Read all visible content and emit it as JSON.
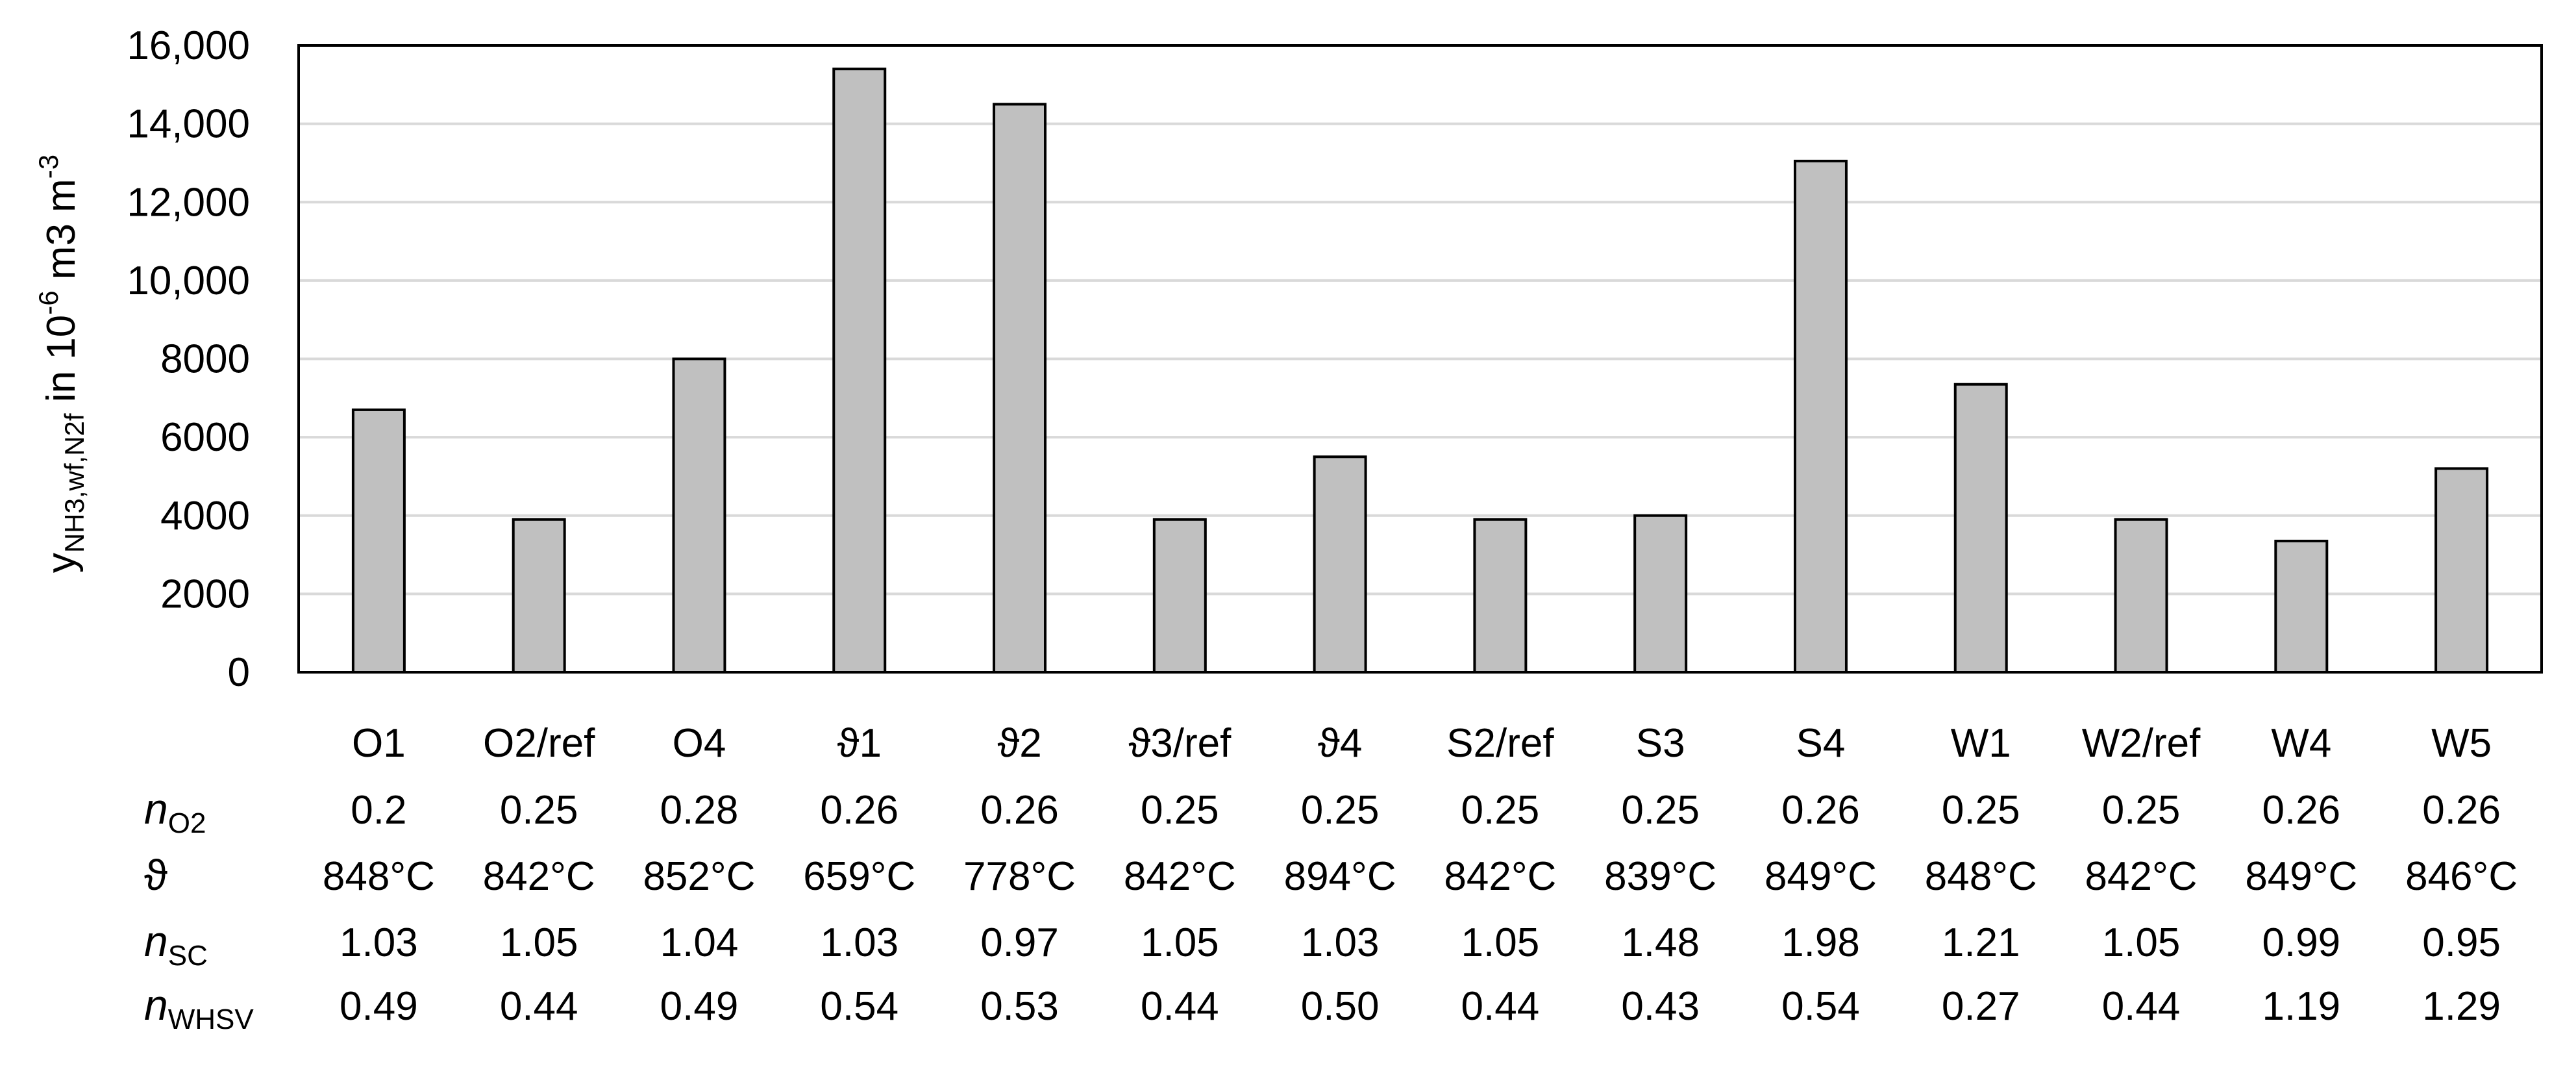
{
  "chart_data": {
    "type": "bar",
    "title": "",
    "xlabel": "",
    "ylabel": {
      "prefix": "y",
      "subscript": "NH3,wf,N2f",
      "mid": " in 10",
      "superscript": "-6",
      "after": " m3 m",
      "superscript2": "-3"
    },
    "ylim": [
      0,
      16000
    ],
    "yticks": [
      0,
      2000,
      4000,
      6000,
      8000,
      10000,
      12000,
      14000,
      16000
    ],
    "ytick_labels": [
      "0",
      "2000",
      "4000",
      "6000",
      "8000",
      "10,000",
      "12,000",
      "14,000",
      "16,000"
    ],
    "grid": true,
    "bar_color": "#c0c0c0",
    "categories": [
      "O1",
      "O2/ref",
      "O4",
      "ϑ1",
      "ϑ2",
      "ϑ3/ref",
      "ϑ4",
      "S2/ref",
      "S3",
      "S4",
      "W1",
      "W2/ref",
      "W4",
      "W5"
    ],
    "values": [
      6700,
      3900,
      8000,
      15400,
      14500,
      3900,
      5500,
      3900,
      4000,
      13050,
      7350,
      3900,
      3350,
      5200
    ],
    "table_rows": [
      {
        "label": {
          "main": "n",
          "sub": "O2"
        },
        "cells": [
          "0.2",
          "0.25",
          "0.28",
          "0.26",
          "0.26",
          "0.25",
          "0.25",
          "0.25",
          "0.25",
          "0.26",
          "0.25",
          "0.25",
          "0.26",
          "0.26"
        ]
      },
      {
        "label": {
          "main": "ϑ",
          "sub": ""
        },
        "cells": [
          "848°C",
          "842°C",
          "852°C",
          "659°C",
          "778°C",
          "842°C",
          "894°C",
          "842°C",
          "839°C",
          "849°C",
          "848°C",
          "842°C",
          "849°C",
          "846°C"
        ]
      },
      {
        "label": {
          "main": "n",
          "sub": "SC"
        },
        "cells": [
          "1.03",
          "1.05",
          "1.04",
          "1.03",
          "0.97",
          "1.05",
          "1.03",
          "1.05",
          "1.48",
          "1.98",
          "1.21",
          "1.05",
          "0.99",
          "0.95"
        ]
      },
      {
        "label": {
          "main": "n",
          "sub": "WHSV"
        },
        "cells": [
          "0.49",
          "0.44",
          "0.49",
          "0.54",
          "0.53",
          "0.44",
          "0.50",
          "0.44",
          "0.43",
          "0.54",
          "0.27",
          "0.44",
          "1.19",
          "1.29"
        ]
      }
    ]
  }
}
